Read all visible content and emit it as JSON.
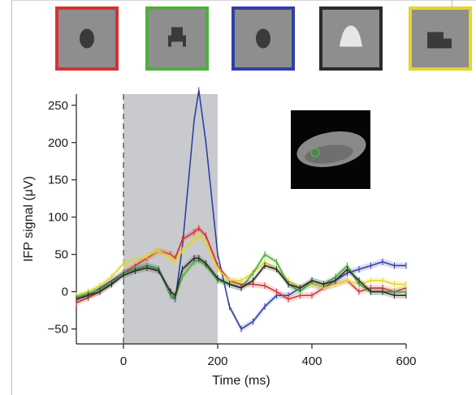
{
  "chart_data": {
    "type": "line",
    "xlabel": "Time (ms)",
    "ylabel": "IFP signal (μV)",
    "xlim": [
      -100,
      600
    ],
    "ylim": [
      -70,
      265
    ],
    "x_ticks": [
      0,
      200,
      400,
      600
    ],
    "y_ticks": [
      -50,
      0,
      50,
      100,
      150,
      200,
      250
    ],
    "shaded_interval": [
      0,
      200
    ],
    "stimulus_onset_ms": 0,
    "grid": false,
    "legend": "none",
    "stimulus_frames": [
      {
        "category": "face",
        "color": "#d93030"
      },
      {
        "category": "chair",
        "color": "#4daf3b"
      },
      {
        "category": "face",
        "color": "#3040a8"
      },
      {
        "category": "object",
        "color": "#2a2a2a"
      },
      {
        "category": "vehicle",
        "color": "#e3d62a"
      }
    ],
    "x": [
      -100,
      -75,
      -50,
      -25,
      0,
      25,
      50,
      75,
      100,
      110,
      125,
      150,
      160,
      175,
      200,
      225,
      250,
      275,
      300,
      325,
      350,
      375,
      400,
      425,
      450,
      475,
      500,
      525,
      550,
      575,
      600
    ],
    "series": [
      {
        "color": "#3040a8",
        "values": [
          -10,
          -5,
          5,
          15,
          25,
          30,
          35,
          30,
          -5,
          -10,
          60,
          230,
          270,
          200,
          50,
          -20,
          -50,
          -40,
          -20,
          -5,
          -5,
          5,
          10,
          5,
          15,
          25,
          30,
          35,
          40,
          35,
          35
        ]
      },
      {
        "color": "#d93030",
        "values": [
          -15,
          -8,
          0,
          12,
          25,
          35,
          45,
          55,
          50,
          45,
          70,
          80,
          85,
          75,
          35,
          15,
          10,
          10,
          8,
          0,
          -10,
          -5,
          -5,
          5,
          10,
          15,
          0,
          5,
          5,
          0,
          5
        ]
      },
      {
        "color": "#e3d62a",
        "values": [
          -5,
          0,
          8,
          20,
          38,
          42,
          48,
          55,
          45,
          40,
          55,
          70,
          75,
          65,
          30,
          15,
          15,
          25,
          40,
          30,
          15,
          5,
          10,
          5,
          10,
          15,
          10,
          15,
          15,
          10,
          10
        ]
      },
      {
        "color": "#4daf3b",
        "values": [
          -8,
          -3,
          3,
          12,
          25,
          30,
          35,
          30,
          -5,
          -8,
          20,
          40,
          42,
          35,
          15,
          10,
          5,
          25,
          50,
          40,
          10,
          0,
          15,
          10,
          20,
          35,
          10,
          0,
          0,
          0,
          0
        ]
      },
      {
        "color": "#2a2a2a",
        "values": [
          -10,
          -5,
          0,
          10,
          22,
          28,
          32,
          28,
          0,
          -5,
          30,
          45,
          45,
          38,
          18,
          10,
          5,
          15,
          35,
          30,
          10,
          5,
          15,
          10,
          15,
          30,
          15,
          0,
          0,
          -5,
          -5
        ]
      }
    ]
  }
}
